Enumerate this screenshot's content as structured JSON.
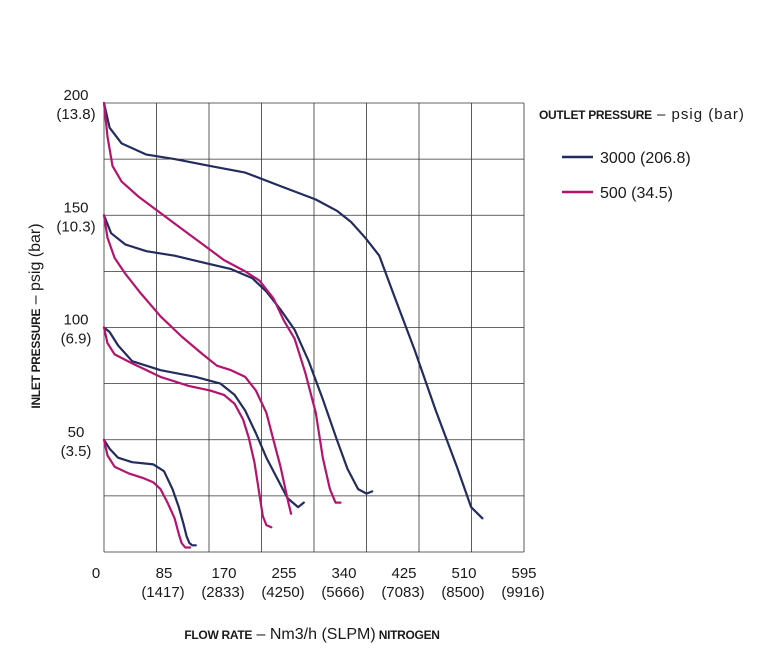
{
  "chart_data": {
    "type": "line",
    "title": "",
    "colors": {
      "s3000": "#232c5e",
      "s500": "#b4146e",
      "grid": "#333333"
    },
    "xlabel": {
      "prefix": "FLOW RATE",
      "dash": " – ",
      "unit": "Nm3/h (SLPM)",
      "suffix": "NITROGEN"
    },
    "ylabel": {
      "prefix": "INLET PRESSURE",
      "dash": " – ",
      "unit": "psig (bar)"
    },
    "xlim": [
      0,
      595
    ],
    "ylim": [
      0,
      200
    ],
    "x_ticks": [
      {
        "value": 0,
        "label": "0",
        "sub": ""
      },
      {
        "value": 85,
        "label": "85",
        "sub": "(1417)"
      },
      {
        "value": 170,
        "label": "170",
        "sub": "(2833)"
      },
      {
        "value": 255,
        "label": "255",
        "sub": "(4250)"
      },
      {
        "value": 340,
        "label": "340",
        "sub": "(5666)"
      },
      {
        "value": 425,
        "label": "425",
        "sub": "(7083)"
      },
      {
        "value": 510,
        "label": "510",
        "sub": "(8500)"
      },
      {
        "value": 595,
        "label": "595",
        "sub": "(9916)"
      }
    ],
    "y_ticks": [
      {
        "value": 200,
        "label": "200",
        "sub": "(13.8)"
      },
      {
        "value": 150,
        "label": "150",
        "sub": "(10.3)"
      },
      {
        "value": 100,
        "label": "100",
        "sub": "(6.9)"
      },
      {
        "value": 50,
        "label": "50",
        "sub": "(3.5)"
      }
    ],
    "legend": {
      "title_prefix": "OUTLET PRESSURE",
      "dash": " – ",
      "title_unit": "psig (bar)",
      "position": "top-right"
    },
    "series": [
      {
        "name": "3000 (206.8)",
        "color_key": "s3000",
        "curves": [
          [
            [
              0,
              200
            ],
            [
              8,
              189
            ],
            [
              25,
              182
            ],
            [
              60,
              177
            ],
            [
              100,
              175
            ],
            [
              150,
              172
            ],
            [
              200,
              169
            ],
            [
              250,
              163
            ],
            [
              300,
              157
            ],
            [
              330,
              152
            ],
            [
              350,
              147
            ],
            [
              370,
              140
            ],
            [
              390,
              132
            ],
            [
              410,
              115
            ],
            [
              440,
              90
            ],
            [
              470,
              63
            ],
            [
              500,
              38
            ],
            [
              520,
              20
            ],
            [
              536,
              15
            ]
          ],
          [
            [
              0,
              150
            ],
            [
              10,
              142
            ],
            [
              30,
              137
            ],
            [
              60,
              134
            ],
            [
              100,
              132
            ],
            [
              140,
              129
            ],
            [
              180,
              126
            ],
            [
              210,
              122
            ],
            [
              230,
              116
            ],
            [
              250,
              108
            ],
            [
              270,
              99
            ],
            [
              290,
              85
            ],
            [
              310,
              68
            ],
            [
              330,
              50
            ],
            [
              345,
              37
            ],
            [
              360,
              28
            ],
            [
              372,
              26
            ],
            [
              380,
              27
            ]
          ],
          [
            [
              0,
              100
            ],
            [
              8,
              98
            ],
            [
              20,
              92
            ],
            [
              40,
              85
            ],
            [
              80,
              81
            ],
            [
              130,
              78
            ],
            [
              165,
              75
            ],
            [
              185,
              70
            ],
            [
              200,
              63
            ],
            [
              215,
              53
            ],
            [
              230,
              42
            ],
            [
              245,
              33
            ],
            [
              260,
              24
            ],
            [
              275,
              20
            ],
            [
              283,
              22
            ]
          ],
          [
            [
              0,
              50
            ],
            [
              8,
              46
            ],
            [
              20,
              42
            ],
            [
              40,
              40
            ],
            [
              70,
              39
            ],
            [
              85,
              36
            ],
            [
              97,
              28
            ],
            [
              106,
              20
            ],
            [
              113,
              12
            ],
            [
              117,
              7
            ],
            [
              121,
              4
            ],
            [
              125,
              3
            ],
            [
              130,
              3
            ]
          ]
        ]
      },
      {
        "name": "500 (34.5)",
        "color_key": "s500",
        "curves": [
          [
            [
              0,
              200
            ],
            [
              5,
              185
            ],
            [
              12,
              172
            ],
            [
              25,
              165
            ],
            [
              50,
              158
            ],
            [
              80,
              151
            ],
            [
              110,
              144
            ],
            [
              140,
              137
            ],
            [
              170,
              130
            ],
            [
              200,
              125
            ],
            [
              220,
              121
            ],
            [
              240,
              113
            ],
            [
              255,
              103
            ],
            [
              270,
              95
            ],
            [
              285,
              80
            ],
            [
              300,
              62
            ],
            [
              310,
              42
            ],
            [
              320,
              28
            ],
            [
              328,
              22
            ],
            [
              335,
              22
            ]
          ],
          [
            [
              0,
              150
            ],
            [
              5,
              140
            ],
            [
              15,
              131
            ],
            [
              30,
              124
            ],
            [
              50,
              116
            ],
            [
              80,
              105
            ],
            [
              110,
              96
            ],
            [
              140,
              88
            ],
            [
              160,
              83
            ],
            [
              180,
              81
            ],
            [
              200,
              78
            ],
            [
              215,
              72
            ],
            [
              230,
              62
            ],
            [
              240,
              50
            ],
            [
              250,
              38
            ],
            [
              257,
              28
            ],
            [
              262,
              21
            ],
            [
              265,
              17
            ]
          ],
          [
            [
              0,
              100
            ],
            [
              5,
              93
            ],
            [
              15,
              88
            ],
            [
              40,
              84
            ],
            [
              80,
              78
            ],
            [
              120,
              74
            ],
            [
              150,
              72
            ],
            [
              170,
              70
            ],
            [
              185,
              66
            ],
            [
              197,
              59
            ],
            [
              205,
              51
            ],
            [
              213,
              40
            ],
            [
              219,
              28
            ],
            [
              225,
              16
            ],
            [
              230,
              12
            ],
            [
              237,
              11
            ]
          ],
          [
            [
              0,
              50
            ],
            [
              5,
              43
            ],
            [
              15,
              38
            ],
            [
              35,
              35
            ],
            [
              55,
              33
            ],
            [
              70,
              31
            ],
            [
              80,
              28
            ],
            [
              90,
              22
            ],
            [
              100,
              15
            ],
            [
              106,
              8
            ],
            [
              110,
              4
            ],
            [
              115,
              2
            ],
            [
              122,
              2
            ]
          ]
        ]
      }
    ]
  }
}
